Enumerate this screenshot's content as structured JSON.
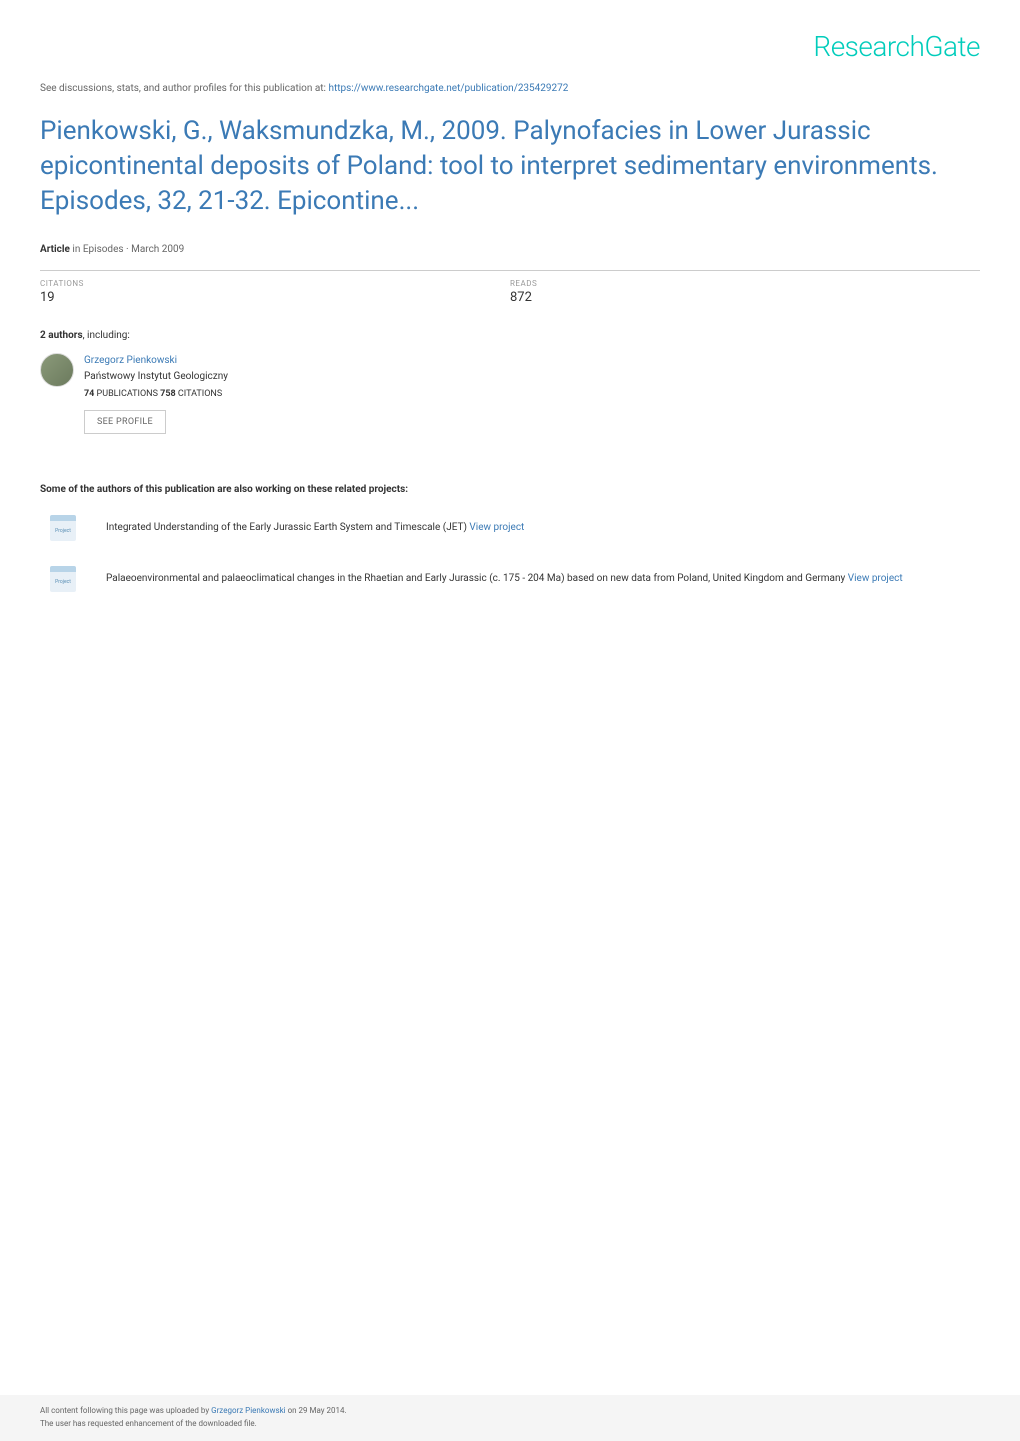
{
  "logo_text": "ResearchGate",
  "logo_color": "#00ccbb",
  "discussions_prefix": "See discussions, stats, and author profiles for this publication at: ",
  "discussions_link": "https://www.researchgate.net/publication/235429272",
  "title": "Pienkowski, G., Waksmundzka, M., 2009. Palynofacies in Lower Jurassic epicontinental deposits of Poland: tool to interpret sedimentary environments. Episodes, 32, 21-32. Epicontine...",
  "title_color": "#3b7ab5",
  "article_type": "Article",
  "article_in": " in  Episodes · March 2009",
  "stats": {
    "citations": {
      "label": "CITATIONS",
      "value": "19"
    },
    "reads": {
      "label": "READS",
      "value": "872"
    }
  },
  "authors_count": "2 authors",
  "authors_suffix": ", including:",
  "author": {
    "name": "Grzegorz Pienkowski",
    "institution": "Państwowy Instytut Geologiczny",
    "publications_count": "74",
    "publications_label": " PUBLICATIONS   ",
    "citations_count": "758",
    "citations_label": " CITATIONS   ",
    "see_profile": "SEE PROFILE"
  },
  "related_label": "Some of the authors of this publication are also working on these related projects:",
  "projects": [
    {
      "text": "Integrated Understanding of the Early Jurassic Earth System and Timescale (JET) ",
      "link_text": "View project"
    },
    {
      "text": "Palaeoenvironmental and palaeoclimatical changes in the Rhaetian and Early Jurassic (c. 175 - 204 Ma) based on new data from Poland, United Kingdom and Germany ",
      "link_text": "View project"
    }
  ],
  "footer": {
    "line1_prefix": "All content following this page was uploaded by ",
    "line1_author": "Grzegorz Pienkowski",
    "line1_suffix": " on 29 May 2014.",
    "line2": "The user has requested enhancement of the downloaded file."
  },
  "link_color": "#3b7ab5",
  "text_color": "#333333",
  "muted_color": "#666666",
  "background_color": "#ffffff",
  "footer_background": "#f5f5f5"
}
